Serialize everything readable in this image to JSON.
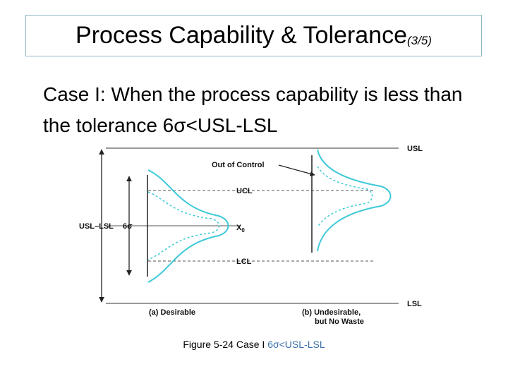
{
  "title": {
    "main": "Process Capability & Tolerance",
    "sub": "(3/5)"
  },
  "body": {
    "line1": "Case I: When the process capability is less than",
    "line2": "the tolerance 6σ<USL-LSL"
  },
  "figure": {
    "labels": {
      "usl": "USL",
      "ucl": "UCL",
      "lcl": "LCL",
      "lsl": "LSL",
      "out_of_control": "Out of Control",
      "usl_lsl": "USL–LSL",
      "six_sigma": "6σ",
      "x0": "X",
      "x0_sub": "0",
      "desirable": "(a) Desirable",
      "undesirable_line1": "(b) Undesirable,",
      "undesirable_line2": "but No Waste"
    },
    "colors": {
      "curve": "#3ec9d9",
      "line": "#222222",
      "dashed": "#555555"
    }
  },
  "caption": {
    "text": "Figure 5-24 Case I ",
    "highlight": "6σ<USL-LSL"
  }
}
